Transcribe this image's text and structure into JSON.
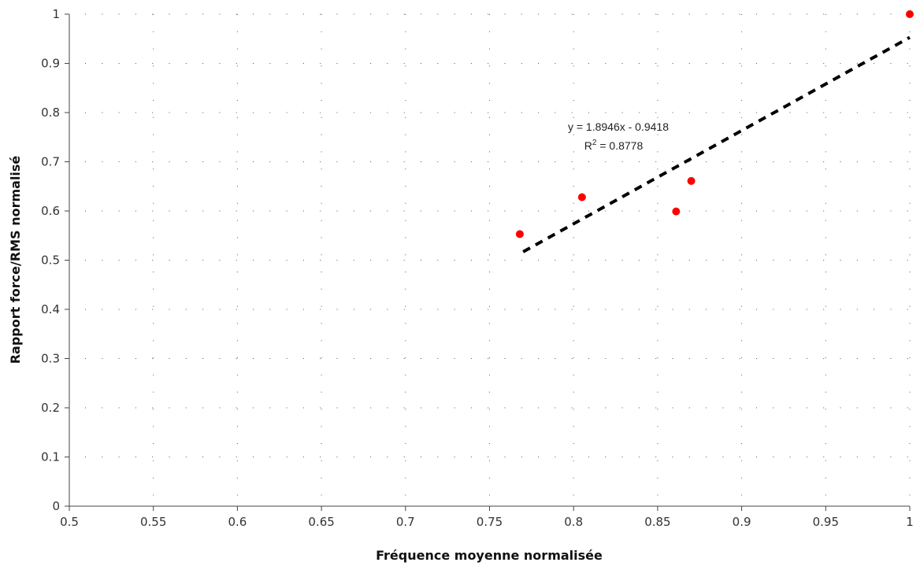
{
  "chart_data": {
    "type": "scatter",
    "xlabel": "Fréquence moyenne normalisée",
    "ylabel": "Rapport force/RMS normalisé",
    "xlim": [
      0.5,
      1
    ],
    "ylim": [
      0,
      1
    ],
    "xticks": [
      "0.5",
      "0.55",
      "0.6",
      "0.65",
      "0.7",
      "0.75",
      "0.8",
      "0.85",
      "0.9",
      "0.95",
      "1"
    ],
    "yticks": [
      "0",
      "0.1",
      "0.2",
      "0.3",
      "0.4",
      "0.5",
      "0.6",
      "0.7",
      "0.8",
      "0.9",
      "1"
    ],
    "grid": true,
    "points": [
      {
        "x": 0.768,
        "y": 0.553
      },
      {
        "x": 0.805,
        "y": 0.628
      },
      {
        "x": 0.861,
        "y": 0.599
      },
      {
        "x": 0.87,
        "y": 0.661
      },
      {
        "x": 1.0,
        "y": 1.0
      }
    ],
    "trendline": {
      "slope": 1.8946,
      "intercept": -0.9418,
      "x_range": [
        0.77,
        1.0
      ],
      "equation": "y = 1.8946x - 0.9418",
      "r2_prefix": "R",
      "r2_sup": "2",
      "r2_value": " = 0.8778"
    },
    "colors": {
      "point": "#ff0000",
      "trendline": "#000000",
      "grid": "#555555"
    }
  }
}
